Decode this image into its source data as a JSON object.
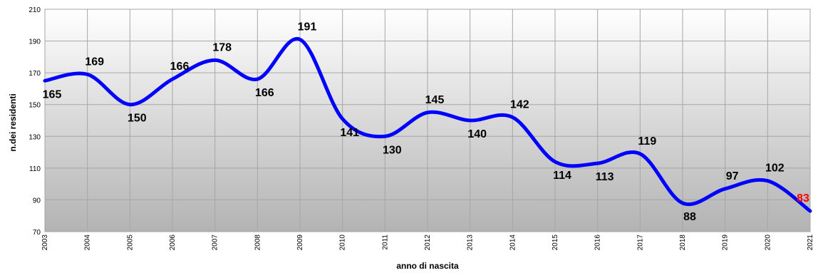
{
  "chart_data": {
    "type": "line",
    "title": "",
    "xlabel": "anno di nascita",
    "ylabel": "n.dei residenti",
    "x": [
      "2003",
      "2004",
      "2005",
      "2006",
      "2007",
      "2008",
      "2009",
      "2010",
      "2011",
      "2012",
      "2013",
      "2014",
      "2015",
      "2016",
      "2017",
      "2018",
      "2019",
      "2020",
      "2021"
    ],
    "series": [
      {
        "values": [
          165,
          169,
          150,
          166,
          178,
          166,
          191,
          141,
          130,
          145,
          140,
          142,
          114,
          113,
          119,
          88,
          97,
          102,
          83
        ],
        "label_colors": [
          "#000000",
          "#000000",
          "#000000",
          "#000000",
          "#000000",
          "#000000",
          "#000000",
          "#000000",
          "#000000",
          "#000000",
          "#000000",
          "#000000",
          "#000000",
          "#000000",
          "#000000",
          "#000000",
          "#000000",
          "#000000",
          "#ff0000"
        ]
      }
    ],
    "ylim": [
      70,
      210
    ],
    "yticks": [
      70,
      90,
      110,
      130,
      150,
      170,
      190,
      210
    ],
    "grid": true,
    "legend": "none",
    "colors": {
      "line": "#0000ff",
      "grid": "#a6a6a6",
      "background_top": "#ffffff",
      "background_bottom": "#b3b3b3",
      "highlight_label": "#ff0000"
    }
  }
}
